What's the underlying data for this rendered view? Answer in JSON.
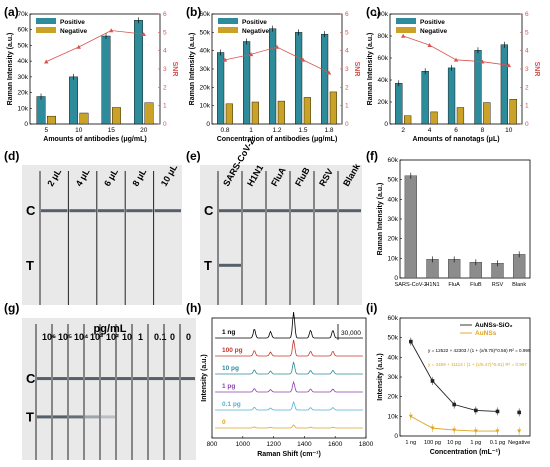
{
  "panel_labels": [
    "(a)",
    "(b)",
    "(c)",
    "(d)",
    "(e)",
    "(f)",
    "(g)",
    "(h)",
    "(i)"
  ],
  "colors": {
    "positive": "#2e8b9a",
    "negative": "#c9a227",
    "snr": "#d9534f",
    "gray_bar": "#8c8c8c",
    "auns_sio2": "#222222",
    "auns": "#e0a320"
  },
  "strips_d": {
    "labels": [
      "2 μL",
      "4 μL",
      "6 μL",
      "8 μL",
      "10 μL"
    ],
    "C": "C",
    "T": "T"
  },
  "strips_e": {
    "labels": [
      "SARS-CoV-2",
      "H1N1",
      "FluA",
      "FluB",
      "RSV",
      "Blank"
    ],
    "C": "C",
    "T": "T"
  },
  "strips_g": {
    "unit": "pg/mL",
    "labels": [
      "10⁶",
      "10⁵",
      "10⁴",
      "10³",
      "10²",
      "10",
      "1",
      "0.1",
      "0",
      "0"
    ],
    "C": "C",
    "T": "T"
  },
  "chart_data": [
    {
      "id": "a",
      "type": "bar",
      "categories": [
        "5",
        "10",
        "15",
        "20"
      ],
      "series": [
        {
          "name": "Positive",
          "values": [
            17500,
            30000,
            56000,
            66000
          ]
        },
        {
          "name": "Negative",
          "values": [
            5000,
            7000,
            10500,
            13500
          ]
        }
      ],
      "line": {
        "name": "SNR",
        "values": [
          3.4,
          4.2,
          5.1,
          4.9
        ]
      },
      "xlabel": "Amounts of antibodies (μg/mL)",
      "ylabel": "Raman Intensity (a.u.)",
      "ylabel2": "SNR",
      "ylim": [
        0,
        70000
      ],
      "y2lim": [
        0,
        6
      ],
      "yticks": [
        "0",
        "10k",
        "20k",
        "30k",
        "40k",
        "50k",
        "60k",
        "70k"
      ],
      "y2ticks": [
        "0",
        "1",
        "2",
        "3",
        "4",
        "5",
        "6"
      ]
    },
    {
      "id": "b",
      "type": "bar",
      "categories": [
        "0.8",
        "1",
        "1.2",
        "1.5",
        "1.8"
      ],
      "series": [
        {
          "name": "Positive",
          "values": [
            39000,
            45000,
            52000,
            50000,
            49000
          ]
        },
        {
          "name": "Negative",
          "values": [
            11000,
            12000,
            12500,
            14500,
            17500
          ]
        }
      ],
      "line": {
        "name": "SNR",
        "values": [
          3.5,
          3.8,
          4.2,
          3.5,
          2.8
        ]
      },
      "xlabel": "Concentration of antibodies (μg/mL)",
      "ylabel": "Raman Intensity (a.u.)",
      "ylabel2": "SNR",
      "ylim": [
        0,
        60000
      ],
      "y2lim": [
        0,
        6
      ],
      "yticks": [
        "0",
        "10k",
        "20k",
        "30k",
        "40k",
        "50k",
        "60k"
      ],
      "y2ticks": [
        "0",
        "1",
        "2",
        "3",
        "4",
        "5",
        "6"
      ]
    },
    {
      "id": "c",
      "type": "bar",
      "categories": [
        "2",
        "4",
        "6",
        "8",
        "10"
      ],
      "series": [
        {
          "name": "Positive",
          "values": [
            37000,
            48000,
            51000,
            67000,
            72000
          ]
        },
        {
          "name": "Negative",
          "values": [
            7500,
            11000,
            15000,
            19500,
            22500
          ]
        }
      ],
      "line": {
        "name": "SNR",
        "values": [
          4.8,
          4.3,
          3.5,
          3.4,
          3.2
        ]
      },
      "xlabel": "Amounts of nanotags (μL)",
      "ylabel": "Raman Intensity (a.u.)",
      "ylabel2": "SNR",
      "ylim": [
        0,
        100000
      ],
      "y2lim": [
        0,
        6
      ],
      "yticks": [
        "0",
        "20k",
        "40k",
        "60k",
        "80k",
        "100k"
      ],
      "y2ticks": [
        "0",
        "1",
        "2",
        "3",
        "4",
        "5",
        "6"
      ]
    },
    {
      "id": "f",
      "type": "bar",
      "categories": [
        "SARS-CoV-2",
        "H1N1",
        "FluA",
        "FluB",
        "RSV",
        "Blank"
      ],
      "values": [
        52000,
        9500,
        9500,
        8000,
        7500,
        12000
      ],
      "ylabel": "Raman Intensity (a.u.)",
      "ylim": [
        0,
        60000
      ],
      "yticks": [
        "0",
        "10k",
        "20k",
        "30k",
        "40k",
        "50k",
        "60k"
      ]
    },
    {
      "id": "h",
      "type": "line",
      "series_labels": [
        "1 ng",
        "100 pg",
        "10 pg",
        "1 pg",
        "0.1 pg",
        "0"
      ],
      "series_colors": [
        "#000000",
        "#c0392b",
        "#2e8b9a",
        "#8e44ad",
        "#4fb3d9",
        "#e0a320"
      ],
      "scalebar": "30,000",
      "xlabel": "Raman Shift (cm⁻¹)",
      "ylabel": "Intensity (a.u.)",
      "xlim": [
        800,
        1800
      ],
      "xticks": [
        "800",
        "1000",
        "1200",
        "1400",
        "1600",
        "1800"
      ]
    },
    {
      "id": "i",
      "type": "line",
      "categories": [
        "1 ng",
        "100 pg",
        "10 pg",
        "1 pg",
        "0.1 pg",
        "Negative"
      ],
      "series": [
        {
          "name": "AuNSs-SiO₂",
          "values": [
            48000,
            28000,
            16000,
            13000,
            12500,
            12000
          ]
        },
        {
          "name": "AuNSs",
          "values": [
            10000,
            4000,
            3000,
            2500,
            2500,
            2500
          ]
        }
      ],
      "eq1": "y = 12522 + 42303 / (1 + (x/9.75)^0.56)  R² = 0.999",
      "eq2": "y = 3469 + 11113 / (1 + (x/5.47)^0.81)  R² = 0.997",
      "xlabel": "Concentration (mL⁻¹)",
      "ylabel": "Intensity (a.u.)",
      "ylim": [
        0,
        60000
      ],
      "yticks": [
        "0",
        "10k",
        "20k",
        "30k",
        "40k",
        "50k",
        "60k"
      ]
    }
  ]
}
